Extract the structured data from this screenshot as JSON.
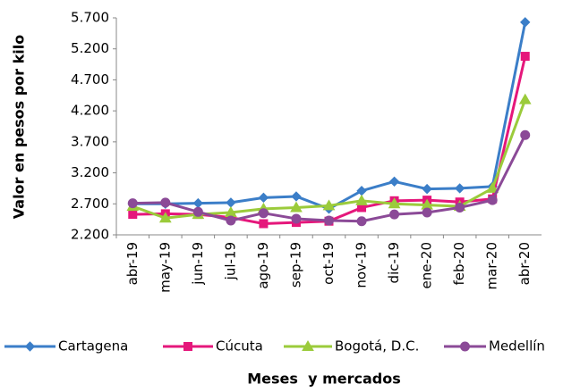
{
  "chart_data": {
    "type": "line",
    "categories": [
      "abr-19",
      "may-19",
      "jun-19",
      "jul-19",
      "ago-19",
      "sep-19",
      "oct-19",
      "nov-19",
      "dic-19",
      "ene-20",
      "feb-20",
      "mar-20",
      "abr-20"
    ],
    "series": [
      {
        "name": "Cartagena",
        "color": "#3b7ec8",
        "marker": "diamond",
        "values": [
          2700,
          2700,
          2710,
          2720,
          2800,
          2820,
          2620,
          2910,
          3060,
          2940,
          2950,
          2980,
          5630
        ]
      },
      {
        "name": "Cúcuta",
        "color": "#e5177b",
        "marker": "square",
        "values": [
          2530,
          2540,
          2530,
          2480,
          2380,
          2400,
          2420,
          2640,
          2750,
          2760,
          2730,
          2780,
          5080
        ]
      },
      {
        "name": "Bogotá, D.C.",
        "color": "#9bcb3b",
        "marker": "triangle",
        "values": [
          2660,
          2470,
          2530,
          2560,
          2620,
          2640,
          2670,
          2750,
          2700,
          2680,
          2660,
          2950,
          4380
        ]
      },
      {
        "name": "Medellín",
        "color": "#8b4a97",
        "marker": "circle",
        "values": [
          2710,
          2720,
          2570,
          2430,
          2550,
          2460,
          2430,
          2420,
          2530,
          2560,
          2640,
          2760,
          3810
        ]
      }
    ],
    "ylim": [
      2200,
      5700
    ],
    "yticks": [
      {
        "value": 2200,
        "label": "2.200"
      },
      {
        "value": 2700,
        "label": "2.700"
      },
      {
        "value": 3200,
        "label": "3.200"
      },
      {
        "value": 3700,
        "label": "3.700"
      },
      {
        "value": 4200,
        "label": "4.200"
      },
      {
        "value": 4700,
        "label": "4.700"
      },
      {
        "value": 5200,
        "label": "5.200"
      },
      {
        "value": 5700,
        "label": "5.700"
      }
    ],
    "ylabel": "Valor en pesos por kilo",
    "xlabel": "Meses  y mercados",
    "legend": "bottom"
  }
}
